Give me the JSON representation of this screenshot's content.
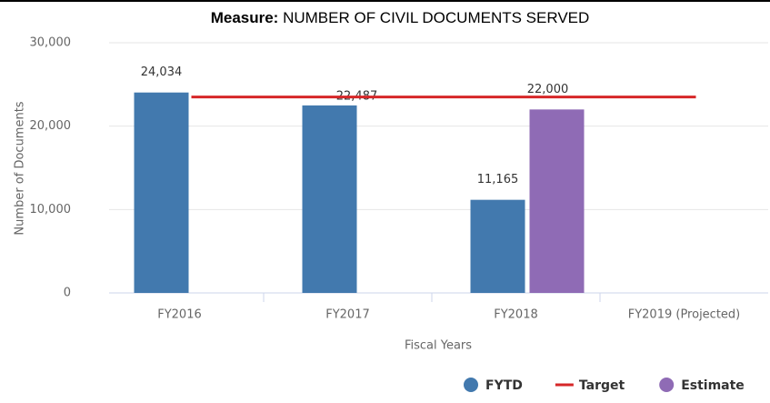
{
  "chart_data": {
    "type": "bar",
    "title_label": "Measure:",
    "title": "NUMBER OF CIVIL DOCUMENTS SERVED",
    "y_label": "Number of Documents",
    "x_label": "Fiscal Years",
    "categories": [
      "FY2016",
      "FY2017",
      "FY2018",
      "FY2019 (Projected)"
    ],
    "series": [
      {
        "name": "FYTD",
        "color": "#4279ae",
        "values": [
          24034,
          22487,
          11165,
          null
        ],
        "value_labels": [
          "24,034",
          "22,487",
          "11,165",
          null
        ]
      },
      {
        "name": "Target",
        "type": "line",
        "color": "#d62728",
        "values": [
          23500,
          23500,
          23500,
          23500
        ]
      },
      {
        "name": "Estimate",
        "color": "#8f6bb5",
        "values": [
          null,
          null,
          22000,
          null
        ],
        "value_labels": [
          null,
          null,
          "22,000",
          null
        ]
      }
    ],
    "ylim": [
      0,
      30000
    ],
    "yticks": [
      0,
      {
        "value": 10000,
        "label": "10,000"
      },
      {
        "value": 20000,
        "label": "20,000"
      },
      {
        "value": 30000,
        "label": "30,000"
      }
    ],
    "grid": true,
    "legend": "bottom-right"
  }
}
